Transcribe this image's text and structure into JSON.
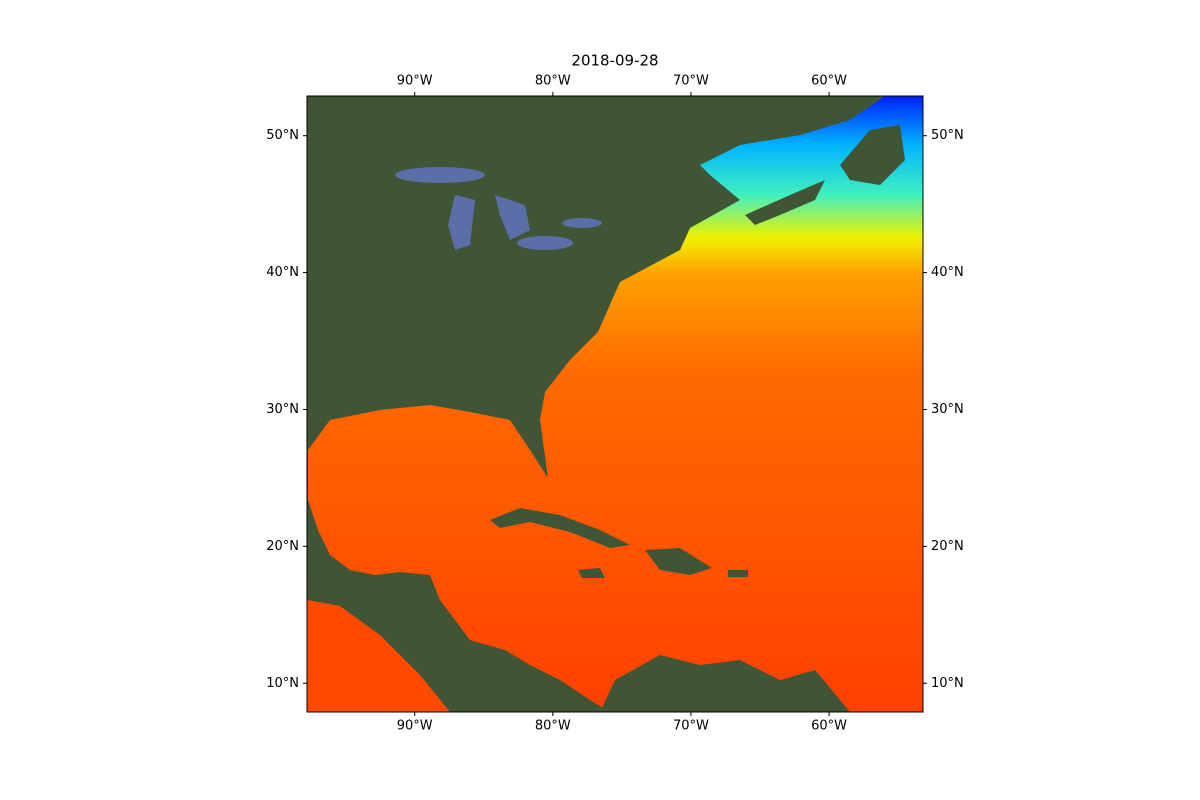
{
  "map": {
    "title": "2018-09-28",
    "xlim": [
      -97.8,
      -53.2
    ],
    "ylim": [
      7.9,
      52.9
    ],
    "xticks": [
      {
        "value": -90,
        "label": "90°W"
      },
      {
        "value": -80,
        "label": "80°W"
      },
      {
        "value": -70,
        "label": "70°W"
      },
      {
        "value": -60,
        "label": "60°W"
      }
    ],
    "yticks": [
      {
        "value": 10,
        "label": "10°N"
      },
      {
        "value": 20,
        "label": "20°N"
      },
      {
        "value": 30,
        "label": "30°N"
      },
      {
        "value": 40,
        "label": "40°N"
      },
      {
        "value": 50,
        "label": "50°N"
      }
    ]
  }
}
